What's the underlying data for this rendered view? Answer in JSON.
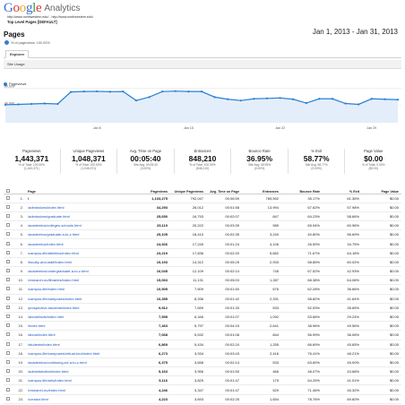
{
  "app": {
    "logo_letters": [
      "G",
      "o",
      "o",
      "g",
      "l",
      "e"
    ],
    "product": "Analytics",
    "urls": "http://www.northwestern.edu/ - http://www.northwestern.edu/",
    "report_name": "Top Level Pages [DEFAULT]"
  },
  "header": {
    "title": "Pages",
    "subtitle": "% of pageviews: 100.00%",
    "date_range": "Jan 1, 2013 - Jan 31, 2013"
  },
  "tabs": {
    "explorer_label": "Explorer",
    "site_usage_label": "Site Usage"
  },
  "colors": {
    "line": "#2a7fd4",
    "fill": "#e3eefa",
    "link": "#1a55c1"
  },
  "chart_data": {
    "type": "area",
    "series": [
      {
        "name": "Pageviews",
        "values": [
          42000,
          43000,
          44000,
          45000,
          44000,
          72000,
          73000,
          73500,
          72500,
          73000,
          52000,
          60000,
          73000,
          74000,
          73000,
          73000,
          60000,
          55000,
          52000,
          56000,
          57000,
          58000,
          55000,
          46000,
          56000,
          56000,
          45000,
          43000,
          56000,
          55000,
          54000
        ]
      }
    ],
    "x_tick_labels": [
      "Jan 8",
      "Jan 15",
      "Jan 22",
      "Jan 29"
    ],
    "y_tick_labels": [
      "80,000",
      "40,000"
    ],
    "ylim": [
      0,
      88000
    ],
    "grid": true,
    "legend": "top-left"
  },
  "scorecards": [
    {
      "name": "Pageviews",
      "value": "1,443,371",
      "sub1": "% of Total: 100.00%",
      "sub2": "(1,443,371)"
    },
    {
      "name": "Unique Pageviews",
      "value": "1,048,371",
      "sub1": "% of Total: 100.00%",
      "sub2": "(1,048,371)"
    },
    {
      "name": "Avg. Time on Page",
      "value": "00:05:40",
      "sub1": "Site Avg: 00:05:40",
      "sub2": "(0.00%)"
    },
    {
      "name": "Entrances",
      "value": "848,210",
      "sub1": "% of Total: 100.00%",
      "sub2": "(848,210)"
    },
    {
      "name": "Bounce Rate",
      "value": "36.95%",
      "sub1": "Site Avg: 36.95%",
      "sub2": "(0.00%)"
    },
    {
      "name": "% Exit",
      "value": "58.77%",
      "sub1": "Site Avg: 58.77%",
      "sub2": "(0.00%)"
    },
    {
      "name": "Page Value",
      "value": "$0.00",
      "sub1": "% of Total: 0.00%",
      "sub2": "($0.00)"
    }
  ],
  "table": {
    "headers": [
      "Page",
      "Pageviews",
      "Unique Pageviews",
      "Avg. Time on Page",
      "Entrances",
      "Bounce Rate",
      "% Exit",
      "Page Value"
    ],
    "rows": [
      {
        "idx": "1.",
        "page": "/",
        "pv": "1,103,275",
        "upv": "792,047",
        "time": "00:06:59",
        "ent": "789,592",
        "bounce": "35.17%",
        "exit": "61.36%",
        "value": "$0.00"
      },
      {
        "idx": "2.",
        "page": "/admissions/index.html",
        "pv": "34,293",
        "upv": "26,012",
        "time": "00:01:58",
        "ent": "13,994",
        "bounce": "67.62%",
        "exit": "57.98%",
        "value": "$0.00"
      },
      {
        "idx": "3.",
        "page": "/admissions/graduate.html",
        "pv": "25,650",
        "upv": "16,793",
        "time": "00:02:07",
        "ent": "847",
        "bounce": "64.23%",
        "exit": "58.66%",
        "value": "$0.00"
      },
      {
        "idx": "4.",
        "page": "/academics/colleges-schools.html",
        "pv": "25,119",
        "upv": "20,222",
        "time": "00:03:39",
        "ent": "989",
        "bounce": "65.94%",
        "exit": "60.96%",
        "value": "$0.00"
      },
      {
        "idx": "5.",
        "page": "/academics/graduate-a-to-z.html",
        "pv": "25,105",
        "upv": "18,410",
        "time": "00:02:35",
        "ent": "3,240",
        "bounce": "40.80%",
        "exit": "56.69%",
        "value": "$0.00"
      },
      {
        "idx": "6.",
        "page": "/academics/index.html",
        "pv": "24,926",
        "upv": "17,245",
        "time": "00:01:24",
        "ent": "4,106",
        "bounce": "26.50%",
        "exit": "34.75%",
        "value": "$0.00"
      },
      {
        "idx": "7.",
        "page": "/campus-life/athletics/index.html",
        "pv": "23,219",
        "upv": "17,836",
        "time": "00:02:20",
        "ent": "5,662",
        "bounce": "71.67%",
        "exit": "64.18%",
        "value": "$0.00"
      },
      {
        "idx": "8.",
        "page": "/faculty-and-staff/index.html",
        "pv": "19,193",
        "upv": "14,312",
        "time": "00:05:25",
        "ent": "2,933",
        "bounce": "58.85%",
        "exit": "60.02%",
        "value": "$0.00"
      },
      {
        "idx": "9.",
        "page": "/academics/undergraduate-a-to-z.html",
        "pv": "16,045",
        "upv": "12,109",
        "time": "00:02:14",
        "ent": "745",
        "bounce": "67.52%",
        "exit": "42.93%",
        "value": "$0.00"
      },
      {
        "idx": "10.",
        "page": "/research-nu/libraries/index.html",
        "pv": "15,063",
        "upv": "11,131",
        "time": "00:05:03",
        "ent": "1,287",
        "bounce": "68.38%",
        "exit": "64.08%",
        "value": "$0.00"
      },
      {
        "idx": "11.",
        "page": "/campus-life/index.html",
        "pv": "10,505",
        "upv": "7,509",
        "time": "00:01:50",
        "ent": "676",
        "bounce": "62.28%",
        "exit": "36.66%",
        "value": "$0.00"
      },
      {
        "idx": "12.",
        "page": "/campus-life/campuses/index.html",
        "pv": "10,355",
        "upv": "8,336",
        "time": "00:01:42",
        "ent": "2,331",
        "bounce": "58.82%",
        "exit": "41.64%",
        "value": "$0.00"
      },
      {
        "idx": "13.",
        "page": "/prospective-students/index.html",
        "pv": "9,912",
        "upv": "7,659",
        "time": "00:01:33",
        "ent": "533",
        "bounce": "52.53%",
        "exit": "35.65%",
        "value": "$0.00"
      },
      {
        "idx": "14.",
        "page": "/about/facts/index.html",
        "pv": "7,595",
        "upv": "6,346",
        "time": "00:01:07",
        "ent": "1,092",
        "bounce": "53.66%",
        "exit": "29.24%",
        "value": "$0.00"
      },
      {
        "idx": "15.",
        "page": "/index.html",
        "pv": "7,463",
        "upv": "5,797",
        "time": "00:04:15",
        "ent": "2,641",
        "bounce": "38.96%",
        "exit": "49.56%",
        "value": "$0.00"
      },
      {
        "idx": "16.",
        "page": "/about/index.html",
        "pv": "7,068",
        "upv": "5,532",
        "time": "00:01:08",
        "ent": "844",
        "bounce": "56.99%",
        "exit": "36.06%",
        "value": "$0.00"
      },
      {
        "idx": "17.",
        "page": "/students/index.html",
        "pv": "6,869",
        "upv": "5,434",
        "time": "00:02:24",
        "ent": "1,255",
        "bounce": "66.69%",
        "exit": "45.65%",
        "value": "$0.00"
      },
      {
        "idx": "18.",
        "page": "/campus-life/campuses/virtual-tour/index.html",
        "pv": "6,273",
        "upv": "3,934",
        "time": "00:03:43",
        "ent": "2,416",
        "bounce": "76.41%",
        "exit": "48.21%",
        "value": "$0.00"
      },
      {
        "idx": "19.",
        "page": "/academics/continuing-ed-a-to-z.html",
        "pv": "6,375",
        "upv": "3,658",
        "time": "00:02:14",
        "ent": "533",
        "bounce": "63.60%",
        "exit": "45.00%",
        "value": "$0.00"
      },
      {
        "idx": "20.",
        "page": "/administration/index.html",
        "pv": "5,163",
        "upv": "3,956",
        "time": "00:01:50",
        "ent": "466",
        "bounce": "48.07%",
        "exit": "43.68%",
        "value": "$0.00"
      },
      {
        "idx": "21.",
        "page": "/campus-life/arts/index.html",
        "pv": "5,116",
        "upv": "3,825",
        "time": "00:01:47",
        "ent": "179",
        "bounce": "64.25%",
        "exit": "41.01%",
        "value": "$0.00"
      },
      {
        "idx": "22.",
        "page": "/research-nu/index.html",
        "pv": "4,246",
        "upv": "3,347",
        "time": "00:01:47",
        "ent": "529",
        "bounce": "71.46%",
        "exit": "45.32%",
        "value": "$0.00"
      },
      {
        "idx": "23.",
        "page": "/contact.html",
        "pv": "4,223",
        "upv": "3,693",
        "time": "00:02:25",
        "ent": "1,654",
        "bounce": "78.76%",
        "exit": "69.60%",
        "value": "$0.00"
      }
    ]
  }
}
